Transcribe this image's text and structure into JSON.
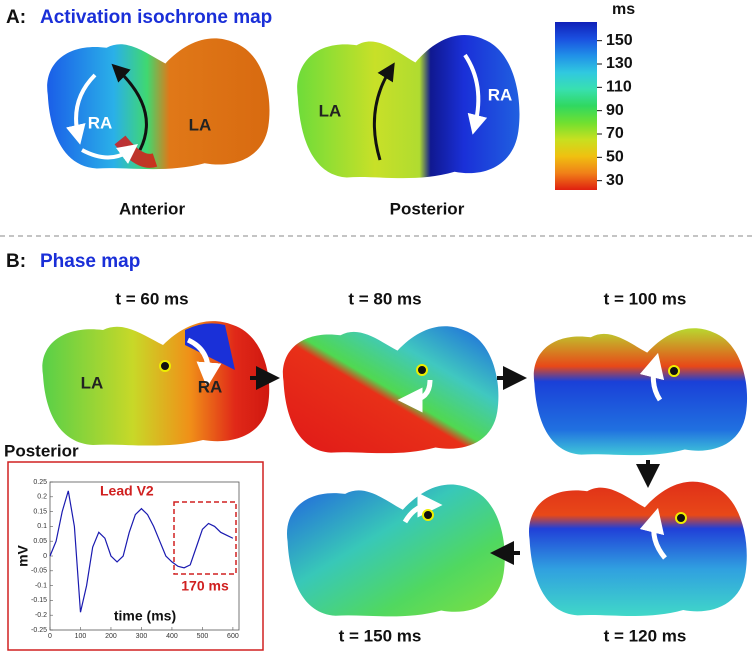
{
  "panel_a": {
    "label": "A:",
    "title": "Activation isochrone map",
    "views": [
      {
        "name": "Anterior",
        "regions": [
          "RA",
          "LA"
        ]
      },
      {
        "name": "Posterior",
        "regions": [
          "LA",
          "RA"
        ]
      }
    ],
    "colorbar": {
      "unit": "ms",
      "lim": [
        166,
        22
      ],
      "ticks": [
        150,
        130,
        110,
        90,
        70,
        50,
        30
      ],
      "colors": [
        "#1020b8",
        "#1a50e0",
        "#2090e8",
        "#30c8e0",
        "#38e0b0",
        "#30d860",
        "#70e030",
        "#c8e020",
        "#f0c010",
        "#f08018",
        "#e02010"
      ]
    }
  },
  "panel_b": {
    "label": "B:",
    "title": "Phase map",
    "frames": [
      "t = 60 ms",
      "t = 80 ms",
      "t = 100 ms",
      "t = 150 ms",
      "t = 120 ms"
    ],
    "regions": [
      "LA",
      "RA"
    ],
    "view": "Posterior"
  },
  "chart_data": {
    "type": "line",
    "title": "Lead V2",
    "annotation": "170 ms",
    "xlabel": "time (ms)",
    "ylabel": "mV",
    "x": [
      0,
      20,
      40,
      60,
      80,
      100,
      120,
      140,
      160,
      180,
      200,
      220,
      240,
      260,
      280,
      300,
      320,
      340,
      360,
      380,
      400,
      420,
      440,
      460,
      480,
      500,
      520,
      540,
      560,
      580,
      600
    ],
    "series": [
      {
        "name": "Lead V2",
        "color": "#1a1ab0",
        "values": [
          0.0,
          0.05,
          0.15,
          0.22,
          0.1,
          -0.19,
          -0.1,
          0.03,
          0.08,
          0.06,
          0.0,
          -0.02,
          0.0,
          0.08,
          0.14,
          0.16,
          0.14,
          0.1,
          0.05,
          0.0,
          -0.02,
          -0.035,
          -0.04,
          -0.03,
          0.03,
          0.09,
          0.11,
          0.1,
          0.08,
          0.07,
          0.06
        ]
      }
    ],
    "xlim": [
      0,
      620
    ],
    "xticks": [
      0,
      100,
      200,
      300,
      400,
      500,
      600
    ],
    "ylim": [
      -0.25,
      0.25
    ],
    "yticks": [
      0.25,
      0.2,
      0.15,
      0.1,
      0.05,
      0,
      -0.05,
      -0.1,
      -0.15,
      -0.2,
      -0.25
    ]
  }
}
